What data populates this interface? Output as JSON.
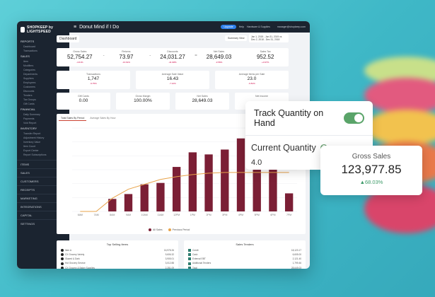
{
  "app": {
    "logo_text": "SHOPKEEP by LIGHTSPEED",
    "store_name": "Donut Mind if I Do",
    "upgrade_label": "Upgrade",
    "help_label": "Help",
    "hardware_label": "Hardware & Supplies",
    "user_email": "manager@shopkeep.com",
    "breadcrumb": "Dashboard",
    "summary_button": "Summary View",
    "date_range": "Jan 1, 2019 - Jan 31, 2019 vs Dec 2, 2018 - Dec 31, 2018"
  },
  "sidebar": {
    "section_title": "REPORTS",
    "items": [
      "Dashboard",
      "Transactions",
      "SALES",
      "Item",
      "Modifiers",
      "Categories",
      "Departments",
      "Suppliers",
      "Employees",
      "Customers",
      "Discounts",
      "Tenders",
      "Tax Groups",
      "Gift Cards",
      "FINANCIAL",
      "Daily Summary",
      "Payments",
      "Void Report",
      "INVENTORY",
      "Transfer Report",
      "Adjustment History",
      "Inventory Value",
      "Item Count",
      "Export Center",
      "Report Subscriptions"
    ],
    "main_nav": [
      "ITEMS",
      "SALES",
      "CUSTOMERS",
      "RECEIPTS",
      "MARKETING",
      "INTEGRATIONS",
      "CAPITAL",
      "SETTINGS"
    ]
  },
  "kpis": [
    {
      "label": "Gross Sales",
      "value": "52,754.27",
      "delta": "-4.61%"
    },
    {
      "label": "Returns",
      "value": "73.97",
      "delta": "-13.61%"
    },
    {
      "label": "Discounts",
      "value": "24,031.27",
      "delta": "-41.98%"
    },
    {
      "label": "Net Sales",
      "value": "28,649.03",
      "delta": "-3.56%"
    },
    {
      "label": "Sales Tax",
      "value": "952.52",
      "delta": "+0.97%"
    }
  ],
  "kpi_operators": [
    "-",
    "-",
    "=",
    ""
  ],
  "row2": [
    {
      "label": "Transactions",
      "value": "1,747",
      "delta": "-9.75%"
    },
    {
      "label": "Average Sale Value",
      "value": "16.43",
      "delta": "-7.12%"
    },
    {
      "label": "Average Items per Sale",
      "value": "23.0",
      "delta": "-9.81%"
    }
  ],
  "row3": [
    {
      "label": "Gift Cards",
      "value": "0.00",
      "delta": ""
    },
    {
      "label": "Gross Margin",
      "value": "100.00%",
      "delta": ""
    },
    {
      "label": "Net Sales",
      "value": "28,649.03",
      "delta": ""
    },
    {
      "label": "Net Income",
      "value": "",
      "delta": ""
    }
  ],
  "chart_tabs": [
    "Total Sales By Period",
    "Average Sales By Hour"
  ],
  "chart_data": {
    "type": "bar",
    "categories": [
      "6AM",
      "7AM",
      "8AM",
      "9AM",
      "10AM",
      "11AM",
      "12PM",
      "1PM",
      "2PM",
      "3PM",
      "4PM",
      "5PM",
      "6PM",
      "7PM"
    ],
    "series": [
      {
        "name": "All Sales",
        "values": [
          0,
          0,
          1.8,
          2.5,
          3.9,
          4.1,
          6.4,
          8.5,
          8.2,
          8.9,
          10.5,
          9.6,
          6.4,
          2.6
        ]
      },
      {
        "name": "Previous Period",
        "values": [
          0,
          0,
          1.9,
          3.2,
          3.9,
          4.6,
          5.0,
          5.3,
          5.5,
          5.6,
          5.6,
          5.6,
          5.6,
          5.6
        ]
      }
    ],
    "colors": {
      "bar": "#7b1f35",
      "line": "#e8a34a"
    },
    "ylim": [
      0,
      12
    ]
  },
  "bottom_left": {
    "title": "Top Selling Items",
    "rows": [
      {
        "name": "Item A",
        "value": "16,978.26"
      },
      {
        "name": "CX Grocery Variety",
        "value": "9,606.32"
      },
      {
        "name": "Glazed & Dark",
        "value": "3,905.01"
      },
      {
        "name": "Hot Grocery Service",
        "value": "3,012.88"
      },
      {
        "name": "CX Grocery & Baker Supplies",
        "value": "2,281.09"
      }
    ]
  },
  "bottom_right": {
    "title": "Sales Tenders",
    "rows": [
      {
        "name": "Credit",
        "value": "18,123.17"
      },
      {
        "name": "Cash",
        "value": "6,605.00"
      },
      {
        "name": "External EBT",
        "value": "2,121.40"
      },
      {
        "name": "Additional Tenders",
        "value": "1,799.46"
      },
      {
        "name": "Total",
        "value": "28,649.03"
      }
    ]
  },
  "track_card": {
    "title": "Track Quantity on Hand",
    "quantity_label": "Current Quantity",
    "help_icon": "?",
    "quantity_value": "4.0"
  },
  "gross_card": {
    "label": "Gross Sales",
    "value": "123,977.85",
    "delta": "▲68.03%"
  }
}
